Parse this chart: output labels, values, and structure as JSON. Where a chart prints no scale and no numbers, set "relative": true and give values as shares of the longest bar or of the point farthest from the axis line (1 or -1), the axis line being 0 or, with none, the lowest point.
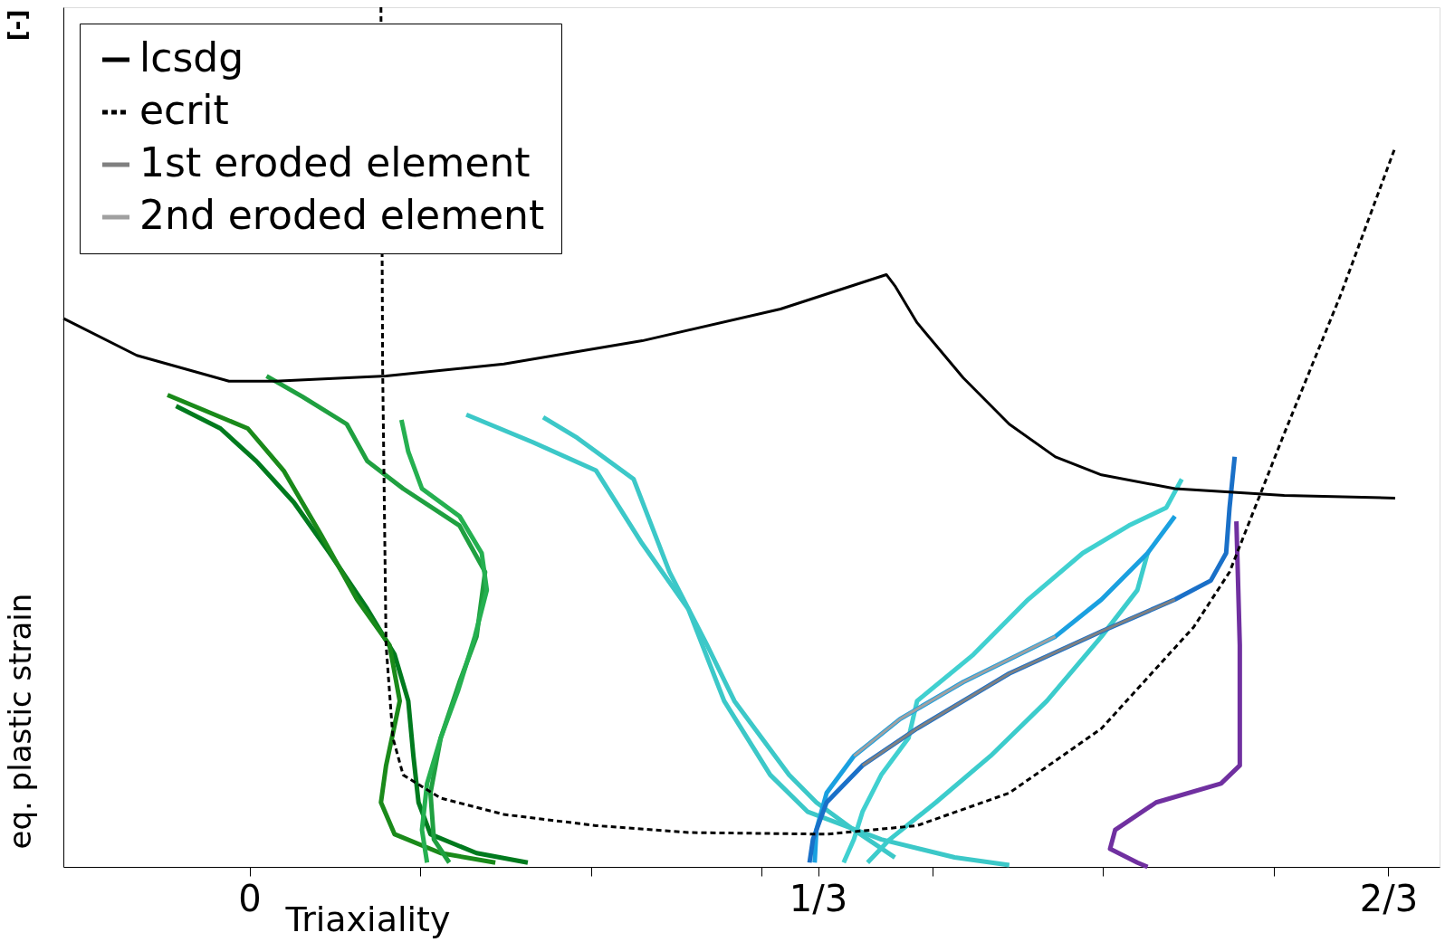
{
  "chart_data": {
    "type": "line",
    "relative": true,
    "xlabel": "Triaxiality",
    "ylabel": "eq. plastic strain",
    "annotations": [
      "[-]"
    ],
    "xlim": [
      -0.109,
      0.697
    ],
    "xticks": [
      {
        "value": 0,
        "label": "0"
      },
      {
        "value": 0.1,
        "label": null
      },
      {
        "value": 0.2,
        "label": null
      },
      {
        "value": 0.3,
        "label": null
      },
      {
        "value": 0.333,
        "label": "1/3"
      },
      {
        "value": 0.4,
        "label": null
      },
      {
        "value": 0.5,
        "label": null
      },
      {
        "value": 0.6,
        "label": null
      },
      {
        "value": 0.667,
        "label": "2/3"
      }
    ],
    "grid": false,
    "legend": "top left",
    "marker": "none",
    "series": [
      {
        "name": "lcsdg",
        "color": "#000000",
        "line_style": "solid",
        "x": [
          -0.109,
          -0.066,
          -0.012,
          0.015,
          0.08,
          0.149,
          0.23,
          0.311,
          0.373,
          0.378,
          0.391,
          0.418,
          0.445,
          0.472,
          0.499,
          0.542,
          0.606,
          0.671
        ],
        "values": [
          0.638,
          0.595,
          0.565,
          0.565,
          0.571,
          0.585,
          0.612,
          0.649,
          0.689,
          0.676,
          0.633,
          0.569,
          0.515,
          0.477,
          0.456,
          0.44,
          0.432,
          0.429
        ]
      },
      {
        "name": "ecrit",
        "color": "#000000",
        "line_style": "dashed",
        "x": [
          0.077,
          0.078,
          0.08,
          0.084,
          0.09,
          0.112,
          0.149,
          0.203,
          0.257,
          0.338,
          0.391,
          0.445,
          0.499,
          0.553,
          0.574,
          0.606,
          0.639,
          0.671
        ],
        "values": [
          1.0,
          0.579,
          0.258,
          0.15,
          0.107,
          0.08,
          0.061,
          0.048,
          0.04,
          0.038,
          0.048,
          0.086,
          0.161,
          0.279,
          0.343,
          0.504,
          0.665,
          0.837
        ]
      },
      {
        "name": "1st eroded element",
        "color": "#808080",
        "line_style": "solid",
        "x": [
          0.359,
          0.391,
          0.445,
          0.499,
          0.542
        ],
        "values": [
          0.118,
          0.161,
          0.225,
          0.274,
          0.311
        ]
      },
      {
        "name": "2nd eroded element",
        "color": "#a0a0a0",
        "line_style": "solid",
        "x": [
          0.354,
          0.381,
          0.418,
          0.472
        ],
        "values": [
          0.129,
          0.172,
          0.215,
          0.268
        ]
      },
      {
        "color": "#007a1e",
        "x": [
          -0.043,
          -0.017,
          0.004,
          0.026,
          0.047,
          0.069,
          0.085,
          0.093,
          0.096,
          0.099,
          0.106,
          0.133,
          0.163
        ],
        "values": [
          0.536,
          0.51,
          0.472,
          0.424,
          0.365,
          0.3,
          0.247,
          0.193,
          0.129,
          0.075,
          0.038,
          0.016,
          0.005
        ]
      },
      {
        "color": "#1a8a1a",
        "x": [
          -0.048,
          -0.001,
          0.02,
          0.042,
          0.063,
          0.082,
          0.088,
          0.08,
          0.077,
          0.085,
          0.112,
          0.144
        ],
        "values": [
          0.549,
          0.51,
          0.461,
          0.386,
          0.311,
          0.258,
          0.193,
          0.118,
          0.075,
          0.038,
          0.016,
          0.005
        ]
      },
      {
        "color": "#1fa040",
        "x": [
          0.01,
          0.031,
          0.057,
          0.069,
          0.09,
          0.123,
          0.138,
          0.133,
          0.123,
          0.112,
          0.106,
          0.108,
          0.117
        ],
        "values": [
          0.571,
          0.547,
          0.515,
          0.472,
          0.44,
          0.397,
          0.343,
          0.268,
          0.215,
          0.15,
          0.086,
          0.032,
          0.005
        ]
      },
      {
        "color": "#25b050",
        "x": [
          0.089,
          0.093,
          0.101,
          0.123,
          0.136,
          0.139,
          0.132,
          0.122,
          0.112,
          0.104,
          0.101,
          0.104
        ],
        "values": [
          0.52,
          0.483,
          0.44,
          0.408,
          0.365,
          0.322,
          0.268,
          0.204,
          0.15,
          0.097,
          0.043,
          0.005
        ]
      },
      {
        "color": "#3cc8c8",
        "x": [
          0.127,
          0.166,
          0.203,
          0.23,
          0.257,
          0.278,
          0.305,
          0.327,
          0.37,
          0.413,
          0.445
        ],
        "values": [
          0.526,
          0.494,
          0.461,
          0.376,
          0.3,
          0.193,
          0.107,
          0.064,
          0.032,
          0.011,
          0.002
        ]
      },
      {
        "color": "#3cc8c8",
        "x": [
          0.172,
          0.192,
          0.225,
          0.246,
          0.268,
          0.284,
          0.3,
          0.316,
          0.332,
          0.354,
          0.378
        ],
        "values": [
          0.523,
          0.499,
          0.451,
          0.343,
          0.258,
          0.193,
          0.15,
          0.107,
          0.075,
          0.043,
          0.011
        ]
      },
      {
        "color": "#40d0d0",
        "x": [
          0.546,
          0.537,
          0.515,
          0.488,
          0.456,
          0.424,
          0.391,
          0.386,
          0.37,
          0.359,
          0.354,
          0.348
        ],
        "values": [
          0.451,
          0.418,
          0.397,
          0.365,
          0.311,
          0.247,
          0.193,
          0.15,
          0.107,
          0.064,
          0.032,
          0.005
        ]
      },
      {
        "color": "#3ccccc",
        "x": [
          0.526,
          0.52,
          0.499,
          0.467,
          0.434,
          0.402,
          0.375,
          0.362
        ],
        "values": [
          0.365,
          0.322,
          0.268,
          0.193,
          0.129,
          0.075,
          0.032,
          0.005
        ]
      },
      {
        "color": "#1aa0e0",
        "x": [
          0.542,
          0.526,
          0.499,
          0.472,
          0.418,
          0.381,
          0.354,
          0.338,
          0.332,
          0.331
        ],
        "values": [
          0.408,
          0.365,
          0.311,
          0.268,
          0.215,
          0.172,
          0.129,
          0.086,
          0.043,
          0.005
        ]
      },
      {
        "color": "#1a70c8",
        "x": [
          0.577,
          0.574,
          0.572,
          0.563,
          0.542,
          0.499,
          0.445,
          0.391,
          0.359,
          0.338,
          0.33,
          0.328
        ],
        "values": [
          0.477,
          0.418,
          0.365,
          0.333,
          0.311,
          0.274,
          0.225,
          0.161,
          0.118,
          0.075,
          0.032,
          0.005
        ]
      },
      {
        "color": "#7030a0",
        "x": [
          0.578,
          0.58,
          0.58,
          0.569,
          0.531,
          0.507,
          0.504,
          0.52,
          0.526
        ],
        "values": [
          0.402,
          0.258,
          0.118,
          0.097,
          0.075,
          0.043,
          0.021,
          0.005,
          0.0
        ]
      }
    ]
  }
}
